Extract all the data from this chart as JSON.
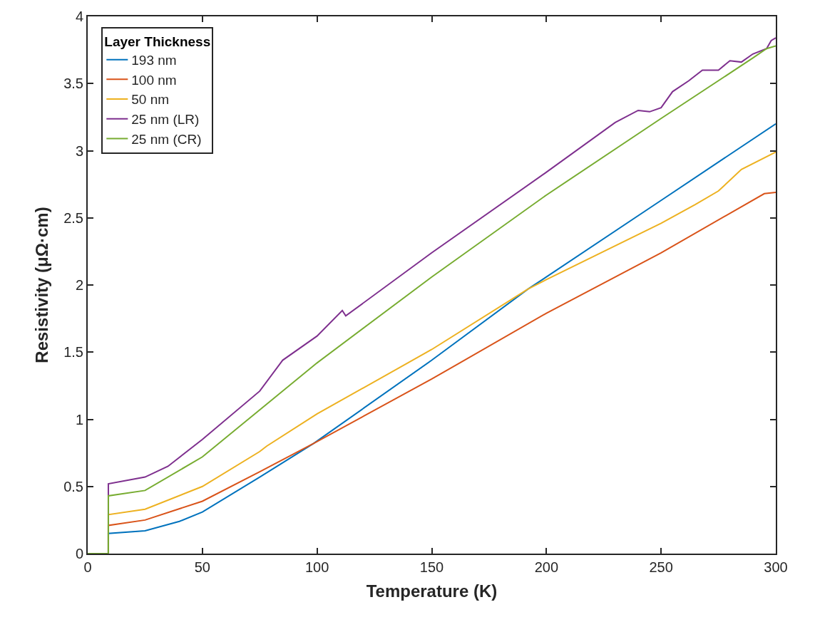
{
  "chart_data": {
    "type": "line",
    "xlabel": "Temperature (K)",
    "ylabel": "Resistivity (μΩ·cm)",
    "legend_title": "Layer Thickness",
    "legend": "top left",
    "marker": "none",
    "line_style": "solid",
    "xlim": [
      0,
      300
    ],
    "xticks": [
      0,
      50,
      100,
      150,
      200,
      250,
      300
    ],
    "ylim": [
      0,
      4
    ],
    "yticks": [
      0,
      0.5,
      1,
      1.5,
      2,
      2.5,
      3,
      3.5,
      4
    ],
    "series": [
      {
        "name": "193 nm",
        "color": "#0072bd",
        "x": [
          0,
          9,
          9,
          25,
          40,
          50,
          75,
          98.5,
          150,
          192,
          200,
          250,
          300
        ],
        "values": [
          0,
          0,
          0.15,
          0.17,
          0.24,
          0.31,
          0.57,
          0.82,
          1.44,
          1.97,
          2.06,
          2.63,
          3.2
        ]
      },
      {
        "name": "100 nm",
        "color": "#d95319",
        "x": [
          0,
          9,
          9,
          25,
          50,
          75,
          98.5,
          150,
          200,
          250,
          295,
          300
        ],
        "values": [
          0,
          0,
          0.21,
          0.25,
          0.39,
          0.61,
          0.82,
          1.3,
          1.79,
          2.24,
          2.68,
          2.69
        ]
      },
      {
        "name": "50 nm",
        "color": "#edb120",
        "x": [
          0,
          9,
          9,
          25,
          50,
          75,
          78,
          100,
          150,
          192,
          200,
          250,
          265,
          275,
          285,
          300
        ],
        "values": [
          0,
          0,
          0.29,
          0.33,
          0.5,
          0.76,
          0.8,
          1.04,
          1.52,
          1.97,
          2.04,
          2.46,
          2.6,
          2.7,
          2.86,
          2.99
        ]
      },
      {
        "name": "25 nm (LR)",
        "color": "#7e2f8e",
        "x": [
          0,
          9,
          9,
          25,
          35,
          50,
          75,
          85,
          100,
          111,
          112.5,
          150,
          200,
          230,
          240,
          245,
          250,
          255,
          262,
          268,
          275,
          280,
          285,
          290,
          296,
          298,
          300
        ],
        "values": [
          0,
          0,
          0.52,
          0.57,
          0.65,
          0.85,
          1.21,
          1.44,
          1.62,
          1.81,
          1.77,
          2.24,
          2.84,
          3.21,
          3.3,
          3.29,
          3.32,
          3.44,
          3.52,
          3.6,
          3.6,
          3.67,
          3.66,
          3.72,
          3.76,
          3.82,
          3.84
        ]
      },
      {
        "name": "25 nm (CR)",
        "color": "#77ac30",
        "x": [
          0,
          9,
          9,
          25,
          50,
          75,
          100,
          150,
          200,
          250,
          290,
          296,
          300
        ],
        "values": [
          0,
          0,
          0.43,
          0.47,
          0.72,
          1.07,
          1.42,
          2.06,
          2.67,
          3.24,
          3.69,
          3.76,
          3.78
        ]
      }
    ]
  }
}
